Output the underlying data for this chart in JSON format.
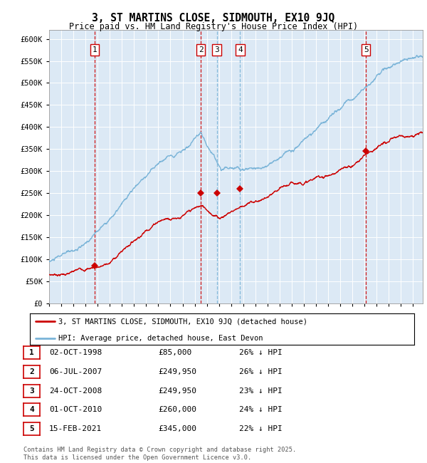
{
  "title": "3, ST MARTINS CLOSE, SIDMOUTH, EX10 9JQ",
  "subtitle": "Price paid vs. HM Land Registry's House Price Index (HPI)",
  "background_color": "#ffffff",
  "plot_bg_color": "#dce9f5",
  "ylim": [
    0,
    620000
  ],
  "yticks": [
    0,
    50000,
    100000,
    150000,
    200000,
    250000,
    300000,
    350000,
    400000,
    450000,
    500000,
    550000,
    600000
  ],
  "ytick_labels": [
    "£0",
    "£50K",
    "£100K",
    "£150K",
    "£200K",
    "£250K",
    "£300K",
    "£350K",
    "£400K",
    "£450K",
    "£500K",
    "£550K",
    "£600K"
  ],
  "hpi_color": "#7ab4d8",
  "price_color": "#cc0000",
  "vline_color_red": "#cc0000",
  "vline_color_blue": "#7ab4d8",
  "legend_label_price": "3, ST MARTINS CLOSE, SIDMOUTH, EX10 9JQ (detached house)",
  "legend_label_hpi": "HPI: Average price, detached house, East Devon",
  "transactions": [
    {
      "label": "1",
      "date_num": 1998.75,
      "price": 85000,
      "vline_color": "red"
    },
    {
      "label": "2",
      "date_num": 2007.5,
      "price": 249950,
      "vline_color": "red"
    },
    {
      "label": "3",
      "date_num": 2008.82,
      "price": 249950,
      "vline_color": "blue"
    },
    {
      "label": "4",
      "date_num": 2010.75,
      "price": 260000,
      "vline_color": "blue"
    },
    {
      "label": "5",
      "date_num": 2021.12,
      "price": 345000,
      "vline_color": "red"
    }
  ],
  "table_data": [
    {
      "num": "1",
      "date": "02-OCT-1998",
      "price": "£85,000",
      "pct": "26% ↓ HPI"
    },
    {
      "num": "2",
      "date": "06-JUL-2007",
      "price": "£249,950",
      "pct": "26% ↓ HPI"
    },
    {
      "num": "3",
      "date": "24-OCT-2008",
      "price": "£249,950",
      "pct": "23% ↓ HPI"
    },
    {
      "num": "4",
      "date": "01-OCT-2010",
      "price": "£260,000",
      "pct": "24% ↓ HPI"
    },
    {
      "num": "5",
      "date": "15-FEB-2021",
      "price": "£345,000",
      "pct": "22% ↓ HPI"
    }
  ],
  "footer": "Contains HM Land Registry data © Crown copyright and database right 2025.\nThis data is licensed under the Open Government Licence v3.0.",
  "xmin": 1995.0,
  "xmax": 2025.8
}
